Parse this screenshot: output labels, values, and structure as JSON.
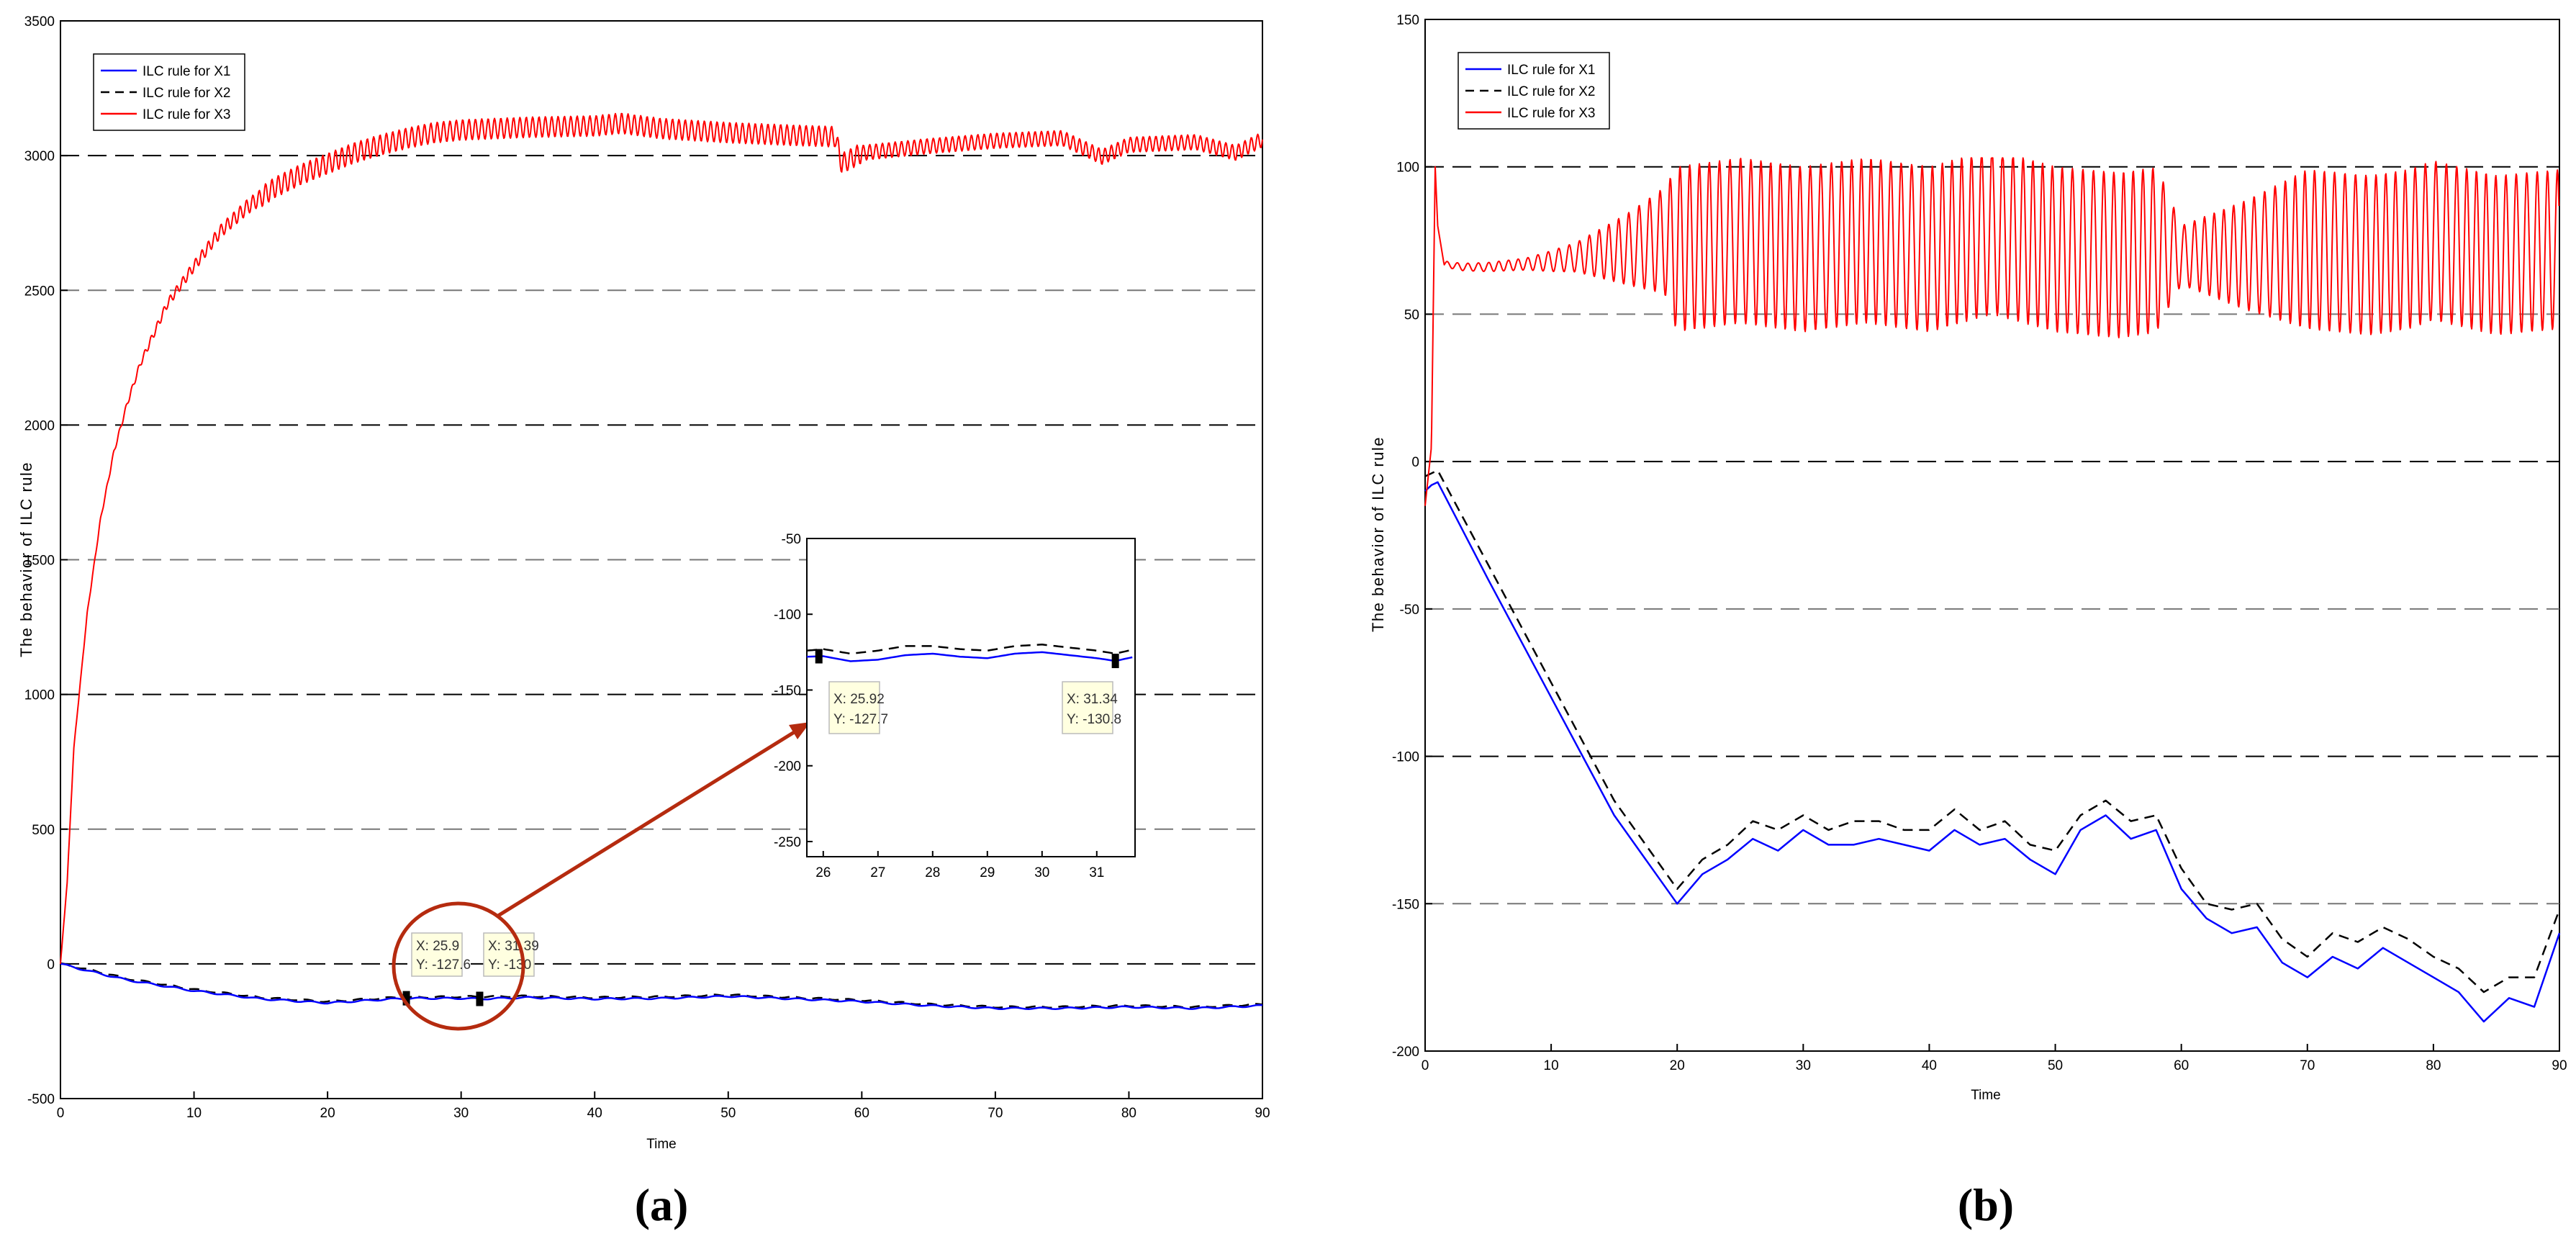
{
  "chart_data": [
    {
      "type": "line",
      "caption": "(a)",
      "xlabel": "Time",
      "ylabel": "The behavior of ILC rule",
      "xlim": [
        0,
        90
      ],
      "ylim": [
        -500,
        3500
      ],
      "xticks": [
        "0",
        "10",
        "20",
        "30",
        "40",
        "50",
        "60",
        "70",
        "80",
        "90"
      ],
      "yticks": [
        "-500",
        "0",
        "500",
        "1000",
        "1500",
        "2000",
        "2500",
        "3000",
        "3500"
      ],
      "grid": "dashed horizontal lines",
      "legend_position": "top-left",
      "series": [
        {
          "name": "ILC rule for X1",
          "color": "#0000ff",
          "style": "solid",
          "x": [
            0,
            2,
            5,
            10,
            15,
            20,
            25,
            26,
            30,
            31.4,
            35,
            40,
            45,
            50,
            55,
            60,
            65,
            70,
            75,
            80,
            85,
            90
          ],
          "y": [
            0,
            -25,
            -60,
            -100,
            -130,
            -145,
            -130,
            -128,
            -128,
            -130,
            -125,
            -130,
            -128,
            -120,
            -130,
            -140,
            -155,
            -165,
            -165,
            -160,
            -165,
            -155
          ]
        },
        {
          "name": "ILC rule for X2",
          "color": "#000000",
          "style": "dashed",
          "x": [
            0,
            2,
            5,
            10,
            15,
            20,
            25,
            30,
            35,
            40,
            45,
            50,
            55,
            60,
            65,
            70,
            75,
            80,
            85,
            90
          ],
          "y": [
            0,
            -20,
            -55,
            -95,
            -125,
            -140,
            -125,
            -122,
            -120,
            -125,
            -122,
            -115,
            -125,
            -135,
            -150,
            -160,
            -160,
            -155,
            -160,
            -150
          ]
        },
        {
          "name": "ILC rule for X3",
          "color": "#ff0000",
          "style": "solid",
          "x": [
            0,
            0.5,
            1,
            2,
            3,
            4,
            5,
            6,
            8,
            10,
            12,
            14,
            16,
            18,
            20,
            22,
            24,
            26,
            28,
            30,
            35,
            40,
            42,
            45,
            50,
            55,
            58,
            58.5,
            60,
            65,
            70,
            75,
            78,
            80,
            85,
            88,
            90
          ],
          "y": [
            0,
            300,
            800,
            1300,
            1650,
            1900,
            2080,
            2230,
            2450,
            2590,
            2720,
            2810,
            2880,
            2930,
            2970,
            3010,
            3040,
            3065,
            3085,
            3095,
            3105,
            3110,
            3120,
            3100,
            3085,
            3075,
            3070,
            2970,
            3010,
            3035,
            3055,
            3065,
            2995,
            3040,
            3050,
            3010,
            3060
          ]
        }
      ],
      "annotations": [
        {
          "x_label": "X: 25.9",
          "y_label": "Y: -127.6"
        },
        {
          "x_label": "X: 31.39",
          "y_label": "Y: -130"
        }
      ],
      "inset": {
        "xlim": [
          25.7,
          31.7
        ],
        "ylim": [
          -260,
          -50
        ],
        "xticks": [
          "26",
          "27",
          "28",
          "29",
          "30",
          "31"
        ],
        "yticks": [
          "-50",
          "-100",
          "-150",
          "-200",
          "-250"
        ],
        "series": [
          {
            "name": "ILC rule for X1",
            "color": "#0000ff",
            "x": [
              25.7,
              26,
              26.5,
              27,
              27.5,
              28,
              28.5,
              29,
              29.5,
              30,
              30.5,
              31,
              31.34,
              31.7
            ],
            "y": [
              -128,
              -127.7,
              -131,
              -130,
              -127,
              -126,
              -128,
              -129,
              -126,
              -125,
              -127,
              -129,
              -130.8,
              -128
            ]
          },
          {
            "name": "ILC rule for X2",
            "color": "#000000",
            "x": [
              25.7,
              26,
              26.5,
              27,
              27.5,
              28,
              28.5,
              29,
              29.5,
              30,
              30.5,
              31,
              31.34,
              31.7
            ],
            "y": [
              -124,
              -123,
              -126,
              -124,
              -121,
              -121,
              -123,
              -124,
              -121,
              -120,
              -122,
              -124,
              -126,
              -123
            ]
          }
        ],
        "annotations": [
          {
            "x_label": "X: 25.92",
            "y_label": "Y: -127.7"
          },
          {
            "x_label": "X: 31.34",
            "y_label": "Y: -130.8"
          }
        ]
      }
    },
    {
      "type": "line",
      "caption": "(b)",
      "xlabel": "Time",
      "ylabel": "The behavior of ILC rule",
      "xlim": [
        0,
        90
      ],
      "ylim": [
        -200,
        150
      ],
      "xticks": [
        "0",
        "10",
        "20",
        "30",
        "40",
        "50",
        "60",
        "70",
        "80",
        "90"
      ],
      "yticks": [
        "-200",
        "-150",
        "-100",
        "-50",
        "0",
        "50",
        "100",
        "150"
      ],
      "grid": "dashed horizontal lines",
      "legend_position": "top-left",
      "series": [
        {
          "name": "ILC rule for X1",
          "color": "#0000ff",
          "style": "solid",
          "x": [
            0,
            0.5,
            1,
            5,
            10,
            15,
            20,
            22,
            24,
            26,
            28,
            30,
            32,
            34,
            36,
            38,
            40,
            42,
            44,
            46,
            48,
            50,
            52,
            54,
            56,
            58,
            60,
            62,
            64,
            66,
            68,
            70,
            72,
            74,
            76,
            78,
            80,
            82,
            84,
            86,
            88,
            90
          ],
          "y": [
            -10,
            -8,
            -7,
            -40,
            -80,
            -120,
            -150,
            -140,
            -135,
            -128,
            -132,
            -125,
            -130,
            -130,
            -128,
            -130,
            -132,
            -125,
            -130,
            -128,
            -135,
            -140,
            -125,
            -120,
            -128,
            -125,
            -145,
            -155,
            -160,
            -158,
            -170,
            -175,
            -168,
            -172,
            -165,
            -170,
            -175,
            -180,
            -190,
            -182,
            -185,
            -160
          ]
        },
        {
          "name": "ILC rule for X2",
          "color": "#000000",
          "style": "dashed",
          "x": [
            0,
            0.5,
            1,
            5,
            10,
            15,
            20,
            22,
            24,
            26,
            28,
            30,
            32,
            34,
            36,
            38,
            40,
            42,
            44,
            46,
            48,
            50,
            52,
            54,
            56,
            58,
            60,
            62,
            64,
            66,
            68,
            70,
            72,
            74,
            76,
            78,
            80,
            82,
            84,
            86,
            88,
            90
          ],
          "y": [
            -5,
            -4,
            -3,
            -35,
            -75,
            -115,
            -145,
            -135,
            -130,
            -122,
            -125,
            -120,
            -125,
            -122,
            -122,
            -125,
            -125,
            -118,
            -125,
            -122,
            -130,
            -132,
            -120,
            -115,
            -122,
            -120,
            -138,
            -150,
            -152,
            -150,
            -162,
            -168,
            -160,
            -163,
            -158,
            -162,
            -168,
            -172,
            -180,
            -175,
            -175,
            -152
          ]
        },
        {
          "name": "ILC rule for X3",
          "color": "#ff0000",
          "style": "solid",
          "x": [
            0,
            0.5,
            0.8,
            1,
            1.5,
            3,
            5,
            8,
            10,
            13,
            16,
            19,
            20,
            25,
            30,
            35,
            40,
            45,
            50,
            55,
            58.5,
            60,
            65,
            70,
            75,
            78,
            80,
            85,
            90
          ],
          "y": [
            -15,
            5,
            100,
            80,
            67,
            66,
            66,
            67,
            68,
            70,
            72,
            75,
            72,
            75,
            72,
            75,
            72,
            78,
            72,
            70,
            72,
            70,
            70,
            72,
            70,
            72,
            75,
            70,
            72
          ]
        }
      ],
      "x3_oscillation_amplitude": [
        [
          0,
          0
        ],
        [
          1.5,
          1
        ],
        [
          8,
          2
        ],
        [
          12,
          5
        ],
        [
          16,
          12
        ],
        [
          19,
          18
        ],
        [
          20,
          28
        ],
        [
          58,
          28
        ],
        [
          60,
          10
        ],
        [
          66,
          20
        ],
        [
          70,
          27
        ],
        [
          90,
          27
        ]
      ]
    }
  ]
}
